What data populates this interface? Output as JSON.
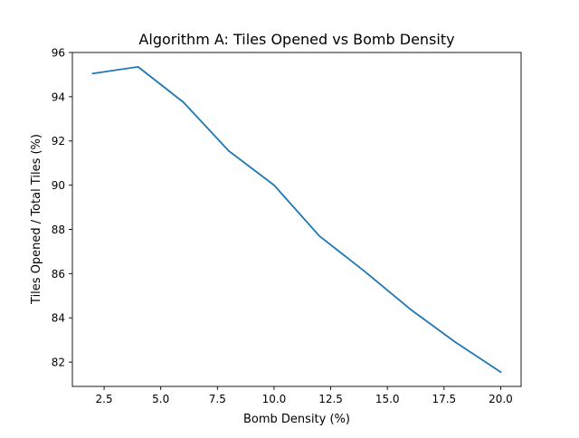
{
  "chart_data": {
    "type": "line",
    "title": "Algorithm A: Tiles Opened vs Bomb Density",
    "xlabel": "Bomb Density (%)",
    "ylabel": "Tiles Opened / Total Tiles (%)",
    "xlim": [
      1.1,
      20.9
    ],
    "ylim": [
      80.9,
      96.0
    ],
    "xticks": [
      2.5,
      5.0,
      7.5,
      10.0,
      12.5,
      15.0,
      17.5,
      20.0
    ],
    "xtick_labels": [
      "2.5",
      "5.0",
      "7.5",
      "10.0",
      "12.5",
      "15.0",
      "17.5",
      "20.0"
    ],
    "yticks": [
      82,
      84,
      86,
      88,
      90,
      92,
      94,
      96
    ],
    "ytick_labels": [
      "82",
      "84",
      "86",
      "88",
      "90",
      "92",
      "94",
      "96"
    ],
    "grid": false,
    "legend": "none",
    "series": [
      {
        "color": "#1f77b4",
        "x": [
          2,
          4,
          6,
          8,
          10,
          12,
          14,
          16,
          18,
          20
        ],
        "y": [
          95.05,
          95.35,
          93.75,
          91.55,
          90.0,
          87.7,
          86.1,
          84.4,
          82.9,
          81.55
        ]
      }
    ]
  }
}
